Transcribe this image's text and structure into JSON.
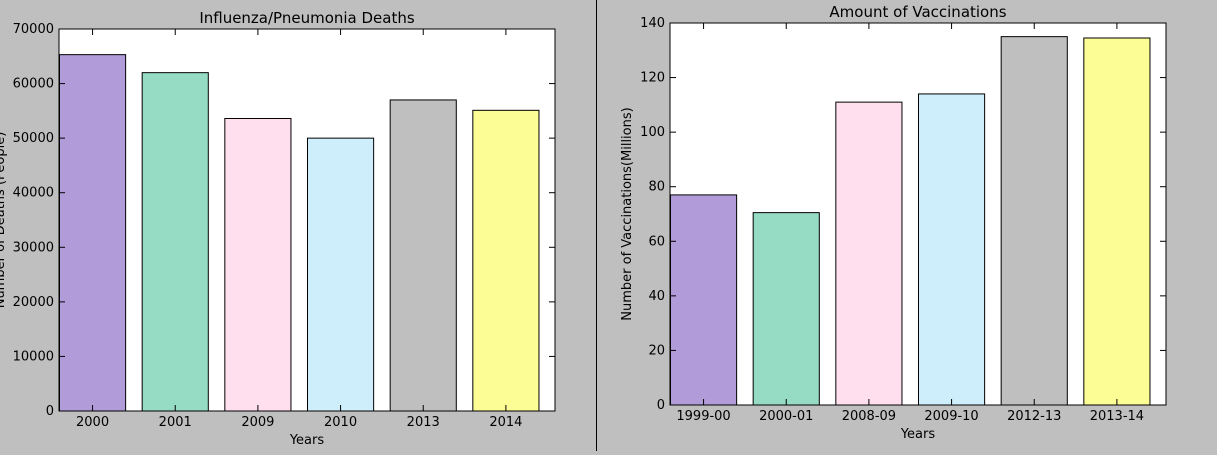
{
  "chart_data": [
    {
      "type": "bar",
      "title": "Influenza/Pneumonia Deaths",
      "xlabel": "Years",
      "ylabel": "Number of Deaths (People)",
      "categories": [
        "2000",
        "2001",
        "2009",
        "2010",
        "2013",
        "2014"
      ],
      "values": [
        65300,
        62000,
        53600,
        50000,
        57000,
        55100
      ],
      "colors": [
        "#b19cd9",
        "#96dcc4",
        "#ffdfee",
        "#ceeefb",
        "#bfbfbf",
        "#fdfd96"
      ],
      "ylim": [
        0,
        70000
      ],
      "yticks": [
        "0",
        "10000",
        "20000",
        "30000",
        "40000",
        "50000",
        "60000",
        "70000"
      ],
      "grid": false
    },
    {
      "type": "bar",
      "title": "Amount of Vaccinations",
      "xlabel": "Years",
      "ylabel": "Number of Vaccinations(Millions)",
      "categories": [
        "1999-00",
        "2000-01",
        "2008-09",
        "2009-10",
        "2012-13",
        "2013-14"
      ],
      "values": [
        77,
        70.5,
        111,
        114,
        135,
        134.5
      ],
      "colors": [
        "#b19cd9",
        "#96dcc4",
        "#ffdfee",
        "#ceeefb",
        "#bfbfbf",
        "#fdfd96"
      ],
      "ylim": [
        0,
        140
      ],
      "yticks": [
        "0",
        "20",
        "40",
        "60",
        "80",
        "100",
        "120",
        "140"
      ],
      "grid": false
    }
  ]
}
